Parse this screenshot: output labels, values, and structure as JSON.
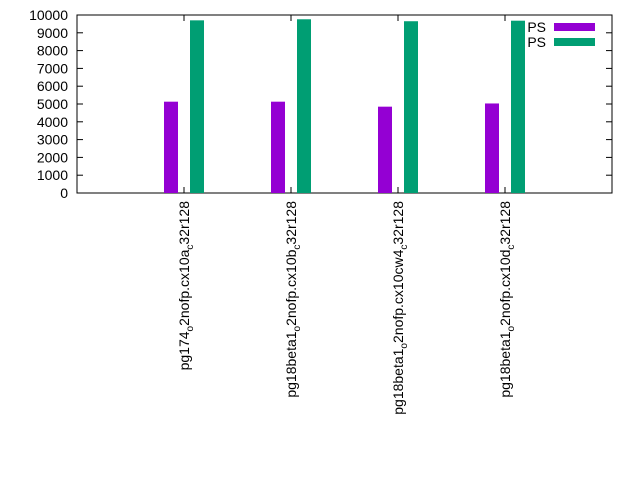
{
  "chart_data": {
    "type": "bar",
    "title": "",
    "xlabel": "",
    "ylabel": "",
    "ylim": [
      0,
      10000
    ],
    "yticks": [
      0,
      1000,
      2000,
      3000,
      4000,
      5000,
      6000,
      7000,
      8000,
      9000,
      10000
    ],
    "grid": false,
    "legend_position": "top-right",
    "categories": [
      {
        "base": "pg174",
        "sub1": "o",
        "mid": "2nofp.cx10a",
        "sub2": "c",
        "tail": "32r128"
      },
      {
        "base": "pg18beta1",
        "sub1": "o",
        "mid": "2nofp.cx10b",
        "sub2": "c",
        "tail": "32r128"
      },
      {
        "base": "pg18beta1",
        "sub1": "o",
        "mid": "2nofp.cx10cw4",
        "sub2": "c",
        "tail": "32r128"
      },
      {
        "base": "pg18beta1",
        "sub1": "o",
        "mid": "2nofp.cx10d",
        "sub2": "c",
        "tail": "32r128"
      }
    ],
    "series": [
      {
        "name": "PS",
        "color": "#9400d3",
        "values": [
          5130,
          5130,
          4850,
          5030
        ]
      },
      {
        "name": "PS",
        "color": "#009e73",
        "values": [
          9700,
          9760,
          9650,
          9680
        ]
      }
    ]
  }
}
